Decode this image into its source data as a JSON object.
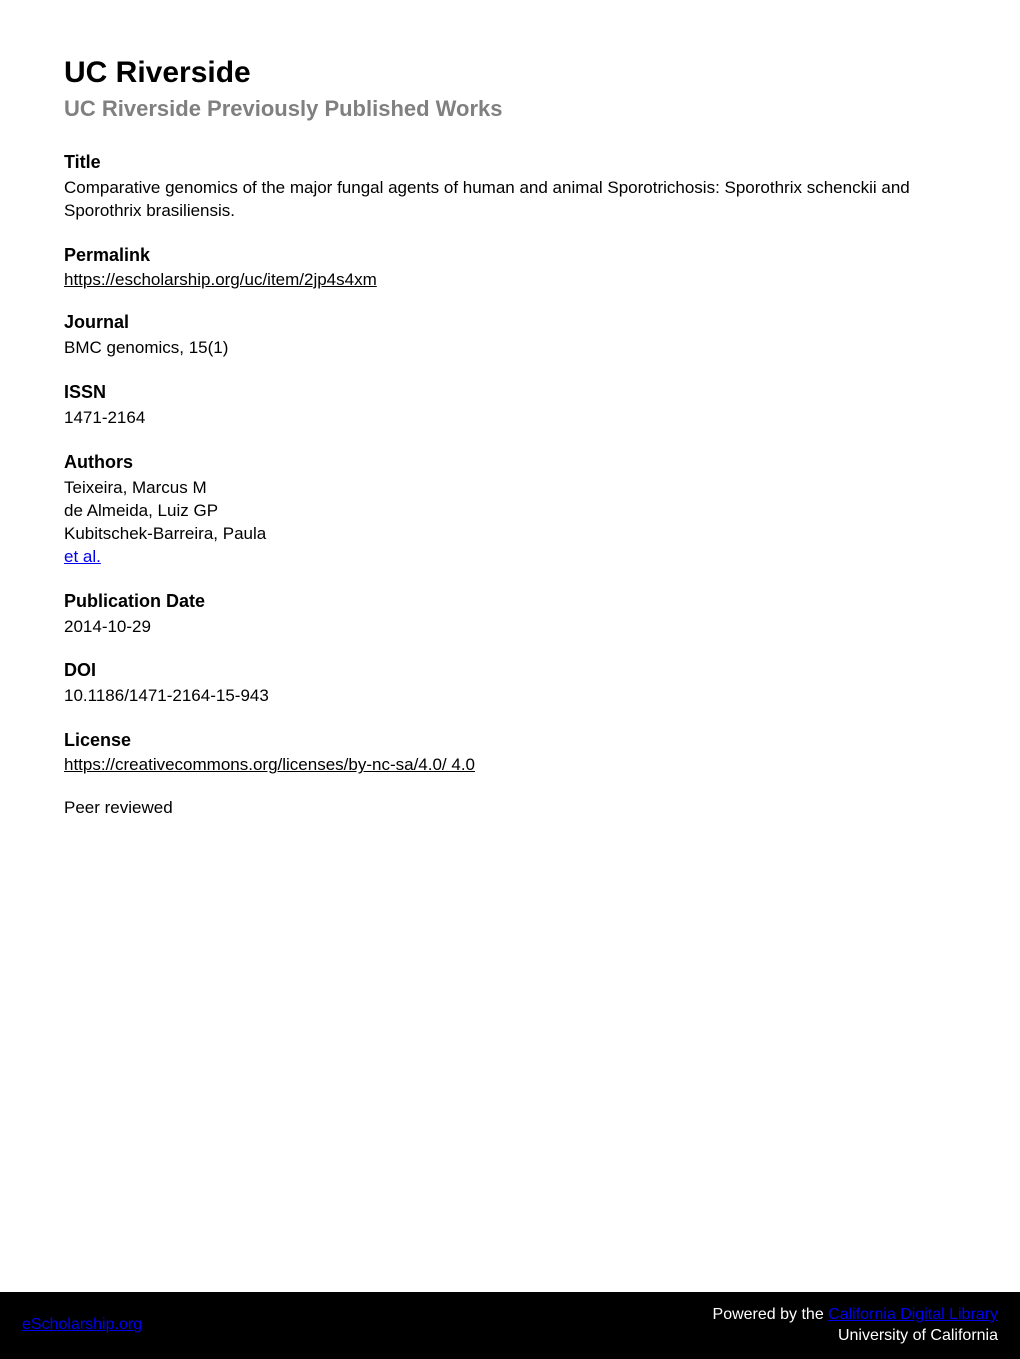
{
  "header": {
    "institution": "UC Riverside",
    "series": "UC Riverside Previously Published Works"
  },
  "title": {
    "label": "Title",
    "value": "Comparative genomics of the major fungal agents of human and animal Sporotrichosis: Sporothrix schenckii and Sporothrix brasiliensis."
  },
  "permalink": {
    "label": "Permalink",
    "value": "https://escholarship.org/uc/item/2jp4s4xm"
  },
  "journal": {
    "label": "Journal",
    "value": "BMC genomics, 15(1)"
  },
  "issn": {
    "label": "ISSN",
    "value": "1471-2164"
  },
  "authors": {
    "label": "Authors",
    "list": [
      "Teixeira, Marcus M",
      "de Almeida, Luiz GP",
      "Kubitschek-Barreira, Paula"
    ],
    "etal": "et al."
  },
  "pubdate": {
    "label": "Publication Date",
    "value": "2014-10-29"
  },
  "doi": {
    "label": "DOI",
    "value": "10.1186/1471-2164-15-943"
  },
  "license": {
    "label": "License",
    "value": "https://creativecommons.org/licenses/by-nc-sa/4.0/ 4.0"
  },
  "peer": "Peer reviewed",
  "footer": {
    "left": "eScholarship.org",
    "right_prefix": "Powered by the ",
    "right_cdl": "California Digital Library",
    "right_line2": "University of California"
  },
  "colors": {
    "text": "#000000",
    "muted": "#808080",
    "footer_bg": "#000000",
    "footer_text": "#ffffff",
    "page_bg": "#ffffff"
  },
  "typography": {
    "h1_fontsize": 30,
    "h2_fontsize": 22,
    "label_fontsize": 18,
    "value_fontsize": 17,
    "footer_fontsize": 16,
    "font_family": "Verdana"
  }
}
